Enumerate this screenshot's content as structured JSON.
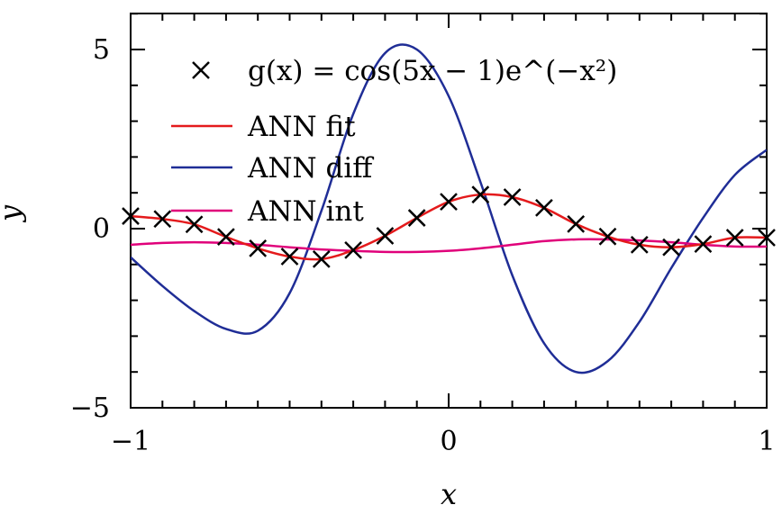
{
  "chart_data": {
    "type": "line",
    "title": "",
    "xlabel": "x",
    "ylabel": "y",
    "xlim": [
      -1,
      1
    ],
    "ylim": [
      -5,
      6
    ],
    "xticks": [
      -1,
      0,
      1
    ],
    "yticks": [
      -5,
      0,
      5
    ],
    "xtick_labels": [
      "−1",
      "0",
      "1"
    ],
    "ytick_labels": [
      "−5",
      "0",
      "5"
    ],
    "grid": false,
    "legend_position": "top",
    "series": [
      {
        "name": "g(x) = cos(5x − 1)e^(−x²)",
        "kind": "markers",
        "marker": "x",
        "color": "#000000",
        "x": [
          -1.0,
          -0.9,
          -0.8,
          -0.7,
          -0.6,
          -0.5,
          -0.4,
          -0.3,
          -0.2,
          -0.1,
          0.0,
          0.1,
          0.2,
          0.3,
          0.4,
          0.5,
          0.6,
          0.7,
          0.8,
          0.9,
          1.0
        ],
        "y": [
          0.35,
          0.27,
          0.12,
          -0.23,
          -0.55,
          -0.78,
          -0.85,
          -0.6,
          -0.2,
          0.3,
          0.75,
          0.95,
          0.88,
          0.58,
          0.13,
          -0.22,
          -0.45,
          -0.52,
          -0.43,
          -0.25,
          -0.25
        ]
      },
      {
        "name": "ANN fit",
        "kind": "line",
        "color": "#e41a1c",
        "x": [
          -1.0,
          -0.9,
          -0.8,
          -0.7,
          -0.6,
          -0.5,
          -0.4,
          -0.3,
          -0.2,
          -0.1,
          0.0,
          0.1,
          0.2,
          0.3,
          0.4,
          0.5,
          0.6,
          0.7,
          0.8,
          0.9,
          1.0
        ],
        "y": [
          0.35,
          0.27,
          0.12,
          -0.23,
          -0.55,
          -0.78,
          -0.85,
          -0.6,
          -0.2,
          0.3,
          0.75,
          0.95,
          0.88,
          0.58,
          0.13,
          -0.22,
          -0.45,
          -0.52,
          -0.43,
          -0.25,
          -0.25
        ]
      },
      {
        "name": "ANN diff",
        "kind": "line",
        "color": "#1f2d96",
        "x": [
          -1.0,
          -0.9,
          -0.8,
          -0.7,
          -0.6,
          -0.5,
          -0.4,
          -0.3,
          -0.2,
          -0.1,
          0.0,
          0.1,
          0.2,
          0.3,
          0.4,
          0.5,
          0.6,
          0.7,
          0.8,
          0.9,
          1.0
        ],
        "y": [
          -0.8,
          -1.6,
          -2.3,
          -2.8,
          -2.85,
          -1.8,
          0.5,
          3.2,
          4.9,
          5.0,
          3.7,
          1.3,
          -1.3,
          -3.2,
          -4.0,
          -3.7,
          -2.6,
          -1.1,
          0.3,
          1.5,
          2.2
        ]
      },
      {
        "name": "ANN int",
        "kind": "line",
        "color": "#e0007a",
        "x": [
          -1.0,
          -0.9,
          -0.8,
          -0.7,
          -0.6,
          -0.5,
          -0.4,
          -0.3,
          -0.2,
          -0.1,
          0.0,
          0.1,
          0.2,
          0.3,
          0.4,
          0.5,
          0.6,
          0.7,
          0.8,
          0.9,
          1.0
        ],
        "y": [
          -0.45,
          -0.4,
          -0.38,
          -0.4,
          -0.45,
          -0.52,
          -0.58,
          -0.62,
          -0.65,
          -0.65,
          -0.62,
          -0.55,
          -0.45,
          -0.35,
          -0.3,
          -0.3,
          -0.33,
          -0.38,
          -0.45,
          -0.5,
          -0.5
        ]
      }
    ]
  }
}
